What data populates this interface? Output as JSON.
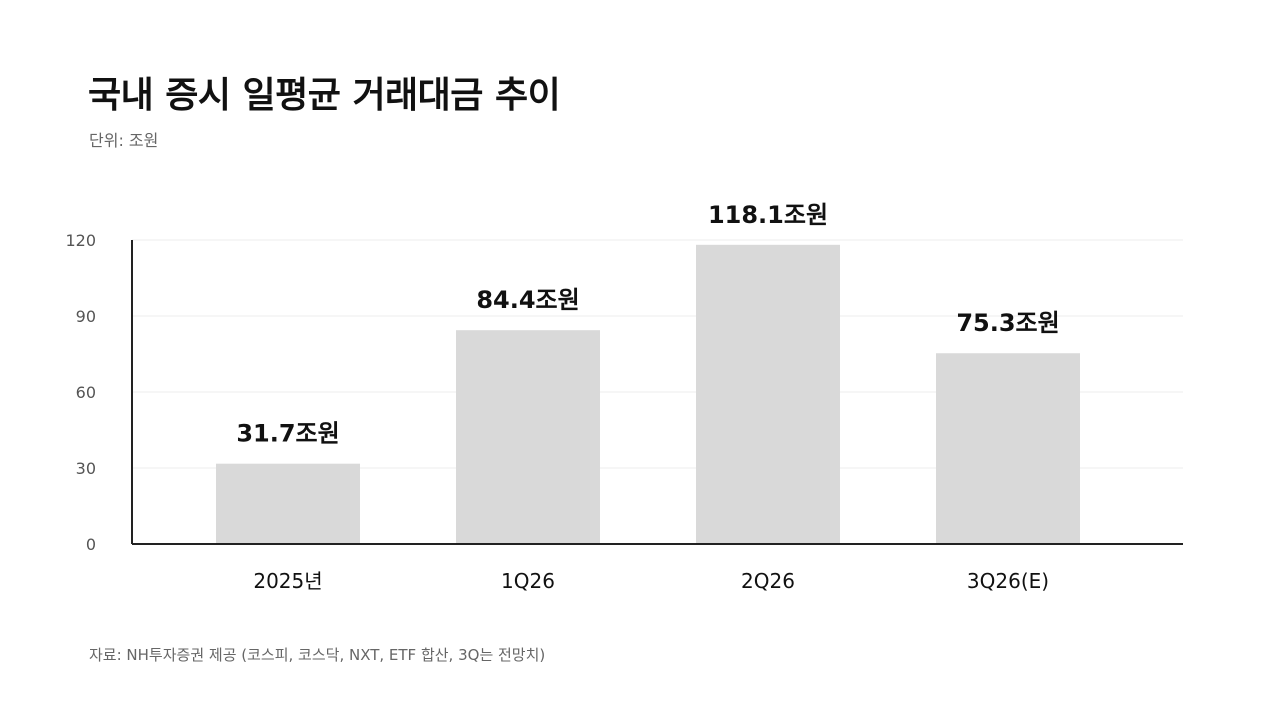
{
  "title": "국내 증시 일평균 거래대금 추이",
  "unit_label": "단위: 조원",
  "source": "자료: NH투자증권 제공 (코스피, 코스닥, NXT, ETF 합산, 3Q는 전망치)",
  "colors": {
    "bar": "#d9d9d9",
    "axis": "#222222",
    "grid": "#ececec",
    "tick_text": "#555555",
    "label_text": "#111111"
  },
  "chart_data": {
    "type": "bar",
    "categories": [
      "2025년",
      "1Q26",
      "2Q26",
      "3Q26(E)"
    ],
    "values": [
      31.7,
      84.4,
      118.1,
      75.3
    ],
    "data_labels": [
      "31.7조원",
      "84.4조원",
      "118.1조원",
      "75.3조원"
    ],
    "yticks": [
      0,
      30,
      60,
      90,
      120
    ],
    "ylim": [
      0,
      120
    ],
    "grid": true,
    "xlabel": "",
    "ylabel": ""
  }
}
